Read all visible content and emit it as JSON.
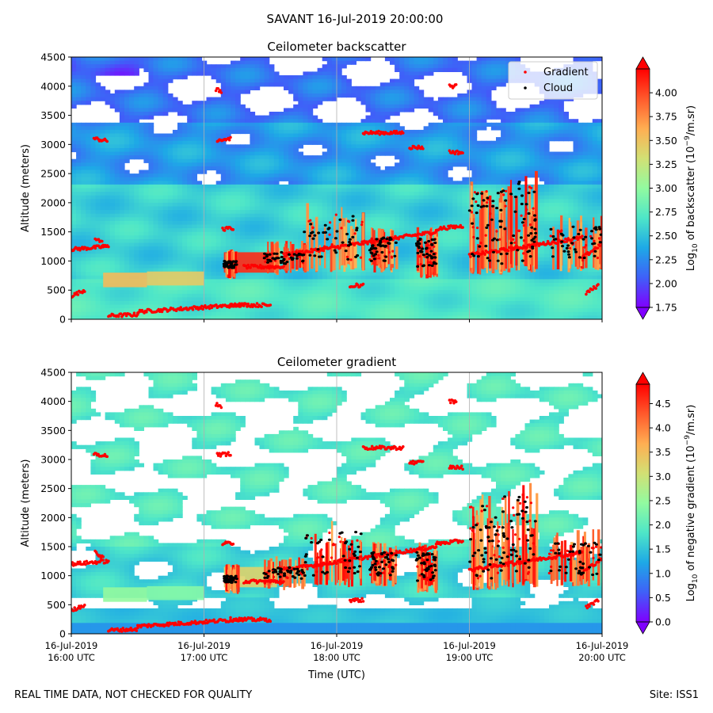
{
  "title": "SAVANT 16-Jul-2019 20:00:00",
  "footer": {
    "note": "REAL TIME DATA, NOT CHECKED FOR QUALITY",
    "site": "Site: ISS1"
  },
  "colors": {
    "gradient_marker": "#ff0000",
    "cloud_marker": "#000000",
    "colormap": [
      "#7f00ff",
      "#3f60f8",
      "#1ea9e6",
      "#4ee6c8",
      "#92fba0",
      "#d2e074",
      "#ffae52",
      "#ff5a2c",
      "#ff0000"
    ]
  },
  "chart_data": [
    {
      "type": "heatmap",
      "title": "Ceilometer backscatter",
      "ylabel": "Altitude (meters)",
      "xlabel": "",
      "ylim": [
        0,
        4500
      ],
      "yticks": [
        "0",
        "500",
        "1000",
        "1500",
        "2000",
        "2500",
        "3000",
        "3500",
        "4000",
        "4500"
      ],
      "xlim_hours": [
        16,
        20
      ],
      "xticks_hours": [
        16,
        17,
        18,
        19,
        20
      ],
      "legend": {
        "position": "top-right",
        "entries": [
          "Gradient",
          "Cloud"
        ]
      },
      "colorbar": {
        "label": "Log10 of backscatter (10^-9/m.sr)",
        "label_main": "Log",
        "label_sub": "10",
        "label_rest": " of backscatter (10",
        "label_sup": "−9",
        "label_tail": "/m.sr)",
        "range": [
          1.75,
          4.25
        ],
        "ticks": [
          "1.75",
          "2.00",
          "2.25",
          "2.50",
          "2.75",
          "3.00",
          "3.25",
          "3.50",
          "3.75",
          "4.00"
        ]
      },
      "gradient_layers": [
        {
          "t": [
            16.0,
            16.1
          ],
          "alt": [
            400,
            500
          ]
        },
        {
          "t": [
            16.0,
            16.28
          ],
          "alt": [
            1200,
            1250
          ]
        },
        {
          "t": [
            16.18,
            16.24
          ],
          "alt": [
            1400,
            1300
          ]
        },
        {
          "t": [
            16.17,
            16.27
          ],
          "alt": [
            3100,
            3060
          ]
        },
        {
          "t": [
            16.28,
            16.5
          ],
          "alt": [
            60,
            80
          ]
        },
        {
          "t": [
            16.5,
            17.3
          ],
          "alt": [
            130,
            250
          ]
        },
        {
          "t": [
            17.2,
            17.5
          ],
          "alt": [
            250,
            240
          ]
        },
        {
          "t": [
            17.1,
            17.2
          ],
          "alt": [
            3080,
            3100
          ]
        },
        {
          "t": [
            17.09,
            17.13
          ],
          "alt": [
            3950,
            3900
          ]
        },
        {
          "t": [
            17.14,
            17.22
          ],
          "alt": [
            1550,
            1560
          ]
        },
        {
          "t": [
            17.3,
            17.6
          ],
          "alt": [
            900,
            900
          ]
        },
        {
          "t": [
            17.6,
            18.75
          ],
          "alt": [
            1100,
            1500
          ]
        },
        {
          "t": [
            18.2,
            18.5
          ],
          "alt": [
            3200,
            3200
          ]
        },
        {
          "t": [
            18.75,
            18.95
          ],
          "alt": [
            1550,
            1600
          ]
        },
        {
          "t": [
            18.55,
            18.65
          ],
          "alt": [
            2950,
            2950
          ]
        },
        {
          "t": [
            18.85,
            18.95
          ],
          "alt": [
            2870,
            2860
          ]
        },
        {
          "t": [
            18.85,
            18.9
          ],
          "alt": [
            4000,
            4000
          ]
        },
        {
          "t": [
            18.1,
            18.2
          ],
          "alt": [
            580,
            580
          ]
        },
        {
          "t": [
            19.0,
            19.85
          ],
          "alt": [
            1100,
            1400
          ]
        },
        {
          "t": [
            19.85,
            20.0
          ],
          "alt": [
            1050,
            1300
          ]
        },
        {
          "t": [
            19.88,
            19.97
          ],
          "alt": [
            450,
            580
          ]
        }
      ],
      "cloud_clusters": [
        {
          "t": [
            17.15,
            17.25
          ],
          "alt": [
            880,
            1000
          ]
        },
        {
          "t": [
            17.45,
            17.75
          ],
          "alt": [
            950,
            1150
          ]
        },
        {
          "t": [
            17.75,
            18.2
          ],
          "alt": [
            1000,
            1800
          ]
        },
        {
          "t": [
            18.25,
            18.45
          ],
          "alt": [
            1000,
            1400
          ]
        },
        {
          "t": [
            18.6,
            18.75
          ],
          "alt": [
            900,
            1400
          ]
        },
        {
          "t": [
            19.0,
            19.25
          ],
          "alt": [
            950,
            2200
          ]
        },
        {
          "t": [
            19.25,
            19.5
          ],
          "alt": [
            1000,
            2400
          ]
        },
        {
          "t": [
            19.6,
            20.0
          ],
          "alt": [
            1000,
            1600
          ]
        }
      ],
      "aerosol_layers": [
        {
          "t": [
            16.24,
            16.57
          ],
          "alt": [
            550,
            800
          ],
          "value": 3.55
        },
        {
          "t": [
            16.57,
            17.0
          ],
          "alt": [
            580,
            820
          ],
          "value": 3.45
        },
        {
          "t": [
            17.15,
            17.55
          ],
          "alt": [
            800,
            1150
          ],
          "value": 4.1
        }
      ]
    },
    {
      "type": "heatmap",
      "title": "Ceilometer gradient",
      "ylabel": "Altitude (meters)",
      "xlabel": "Time (UTC)",
      "ylim": [
        0,
        4500
      ],
      "yticks": [
        "0",
        "500",
        "1000",
        "1500",
        "2000",
        "2500",
        "3000",
        "3500",
        "4000",
        "4500"
      ],
      "xlim_hours": [
        16,
        20
      ],
      "xticks_hours": [
        16,
        17,
        18,
        19,
        20
      ],
      "xtick_labels": [
        [
          "16-Jul-2019",
          "16:00 UTC"
        ],
        [
          "16-Jul-2019",
          "17:00 UTC"
        ],
        [
          "16-Jul-2019",
          "18:00 UTC"
        ],
        [
          "16-Jul-2019",
          "19:00 UTC"
        ],
        [
          "16-Jul-2019",
          "20:00 UTC"
        ]
      ],
      "colorbar": {
        "label": "Log10 of negative gradient (10^-9/m.sr)",
        "label_main": "Log",
        "label_sub": "10",
        "label_rest": " of negative gradient (10",
        "label_sup": "−9",
        "label_tail": "/m.sr)",
        "range": [
          0.0,
          4.9
        ],
        "ticks": [
          "0.0",
          "0.5",
          "1.0",
          "1.5",
          "2.0",
          "2.5",
          "3.0",
          "3.5",
          "4.0",
          "4.5"
        ]
      }
    }
  ]
}
